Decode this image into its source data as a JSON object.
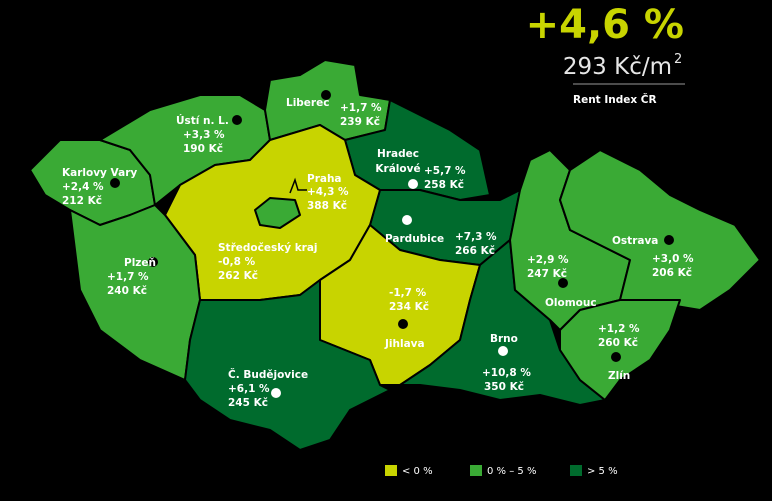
{
  "header": {
    "change": "+4,6 %",
    "price": "293 Kč/m",
    "price_exponent": "2",
    "title": "Rent Index ČR"
  },
  "regions": [
    {
      "name": [
        "Karlovy Vary"
      ],
      "change": "+2,4 %",
      "price": "212 Kč"
    },
    {
      "name": [
        "Ústí n. L."
      ],
      "change": "+3,3 %",
      "price": "190 Kč"
    },
    {
      "name": [
        "Liberec"
      ],
      "change": "+1,7 %",
      "price": "239 Kč"
    },
    {
      "name": [
        "Hradec",
        "Králové"
      ],
      "change": "+5,7 %",
      "price": "258 Kč"
    },
    {
      "name": [
        "Pardubice"
      ],
      "change": "+7,3 %",
      "price": "266 Kč"
    },
    {
      "name": [
        "Praha"
      ],
      "change": "+4,3 %",
      "price": "388 Kč"
    },
    {
      "name": [
        "Středočeský kraj"
      ],
      "change": "-0,8 %",
      "price": "262 Kč"
    },
    {
      "name": [
        "Plzeň"
      ],
      "change": "+1,7 %",
      "price": "240 Kč"
    },
    {
      "name": [
        "Jihlava"
      ],
      "change": "-1,7 %",
      "price": "234 Kč"
    },
    {
      "name": [
        "Č. Budějovice"
      ],
      "change": "+6,1 %",
      "price": "245 Kč"
    },
    {
      "name": [
        "Brno"
      ],
      "change": "+10,8 %",
      "price": "350 Kč"
    },
    {
      "name": [
        "Olomouc"
      ],
      "change": "+2,9 %",
      "price": "247 Kč"
    },
    {
      "name": [
        "Ostrava"
      ],
      "change": "+3,0 %",
      "price": "206 Kč"
    },
    {
      "name": [
        "Zlín"
      ],
      "change": "+1,2 %",
      "price": "260 Kč"
    }
  ],
  "legend": [
    "< 0 %",
    "0 % – 5 %",
    "> 5 %"
  ]
}
